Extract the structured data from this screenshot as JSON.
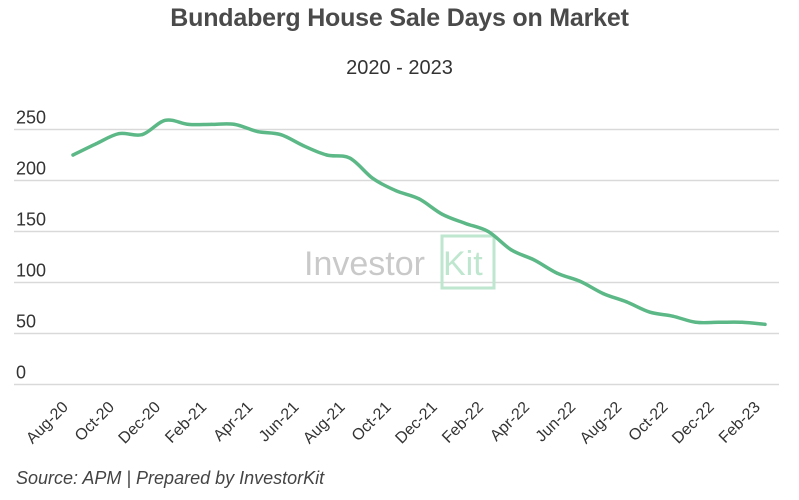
{
  "chart_data": {
    "type": "line",
    "title": "Bundaberg House Sale Days on Market",
    "subtitle": "2020 - 2023",
    "source": "Source: APM | Prepared by InvestorKit",
    "watermark": {
      "text": "Investor",
      "highlight": "Kit"
    },
    "line_color": "#5cb886",
    "ylim": [
      0,
      250
    ],
    "yticks": [
      0,
      50,
      100,
      150,
      200,
      250
    ],
    "xtick_labels": [
      "Aug-20",
      "Oct-20",
      "Dec-20",
      "Feb-21",
      "Apr-21",
      "Jun-21",
      "Aug-21",
      "Oct-21",
      "Dec-21",
      "Feb-22",
      "Apr-22",
      "Jun-22",
      "Aug-22",
      "Oct-22",
      "Dec-22",
      "Feb-23"
    ],
    "x": [
      "Aug-20",
      "Sep-20",
      "Oct-20",
      "Nov-20",
      "Dec-20",
      "Jan-21",
      "Feb-21",
      "Mar-21",
      "Apr-21",
      "May-21",
      "Jun-21",
      "Jul-21",
      "Aug-21",
      "Sep-21",
      "Oct-21",
      "Nov-21",
      "Dec-21",
      "Jan-22",
      "Feb-22",
      "Mar-22",
      "Apr-22",
      "May-22",
      "Jun-22",
      "Jul-22",
      "Aug-22",
      "Sep-22",
      "Oct-22",
      "Nov-22",
      "Dec-22",
      "Jan-23",
      "Feb-23"
    ],
    "series": [
      {
        "values": [
          225,
          236,
          246,
          245,
          259,
          255,
          255,
          255,
          248,
          245,
          234,
          225,
          222,
          202,
          190,
          182,
          167,
          158,
          150,
          132,
          122,
          109,
          101,
          89,
          81,
          71,
          67,
          61,
          61,
          61,
          59
        ]
      }
    ],
    "grid": true
  }
}
